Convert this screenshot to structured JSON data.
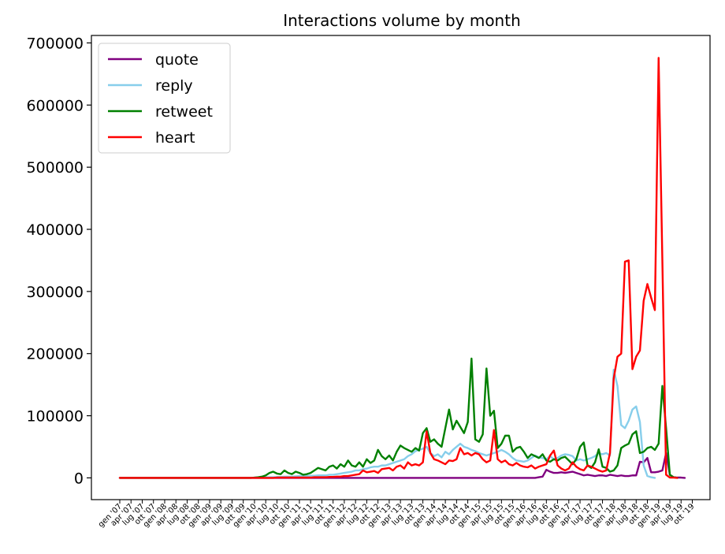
{
  "chart_data": {
    "type": "line",
    "title": "Interactions volume by month",
    "xlabel": "",
    "ylabel": "",
    "ylim": [
      -35000,
      712000
    ],
    "yticks": [
      0,
      100000,
      200000,
      300000,
      400000,
      500000,
      600000,
      700000
    ],
    "ytick_labels": [
      "0",
      "100000",
      "200000",
      "300000",
      "400000",
      "500000",
      "600000",
      "700000"
    ],
    "x_start": "2007-01",
    "x_end": "2019-12",
    "xtick_labels": [
      "gen '07",
      "apr '07",
      "lug '07",
      "ott '07",
      "gen '08",
      "apr '08",
      "lug '08",
      "ott '08",
      "gen '09",
      "apr '09",
      "lug '09",
      "ott '09",
      "gen '10",
      "apr '10",
      "lug '10",
      "ott '10",
      "gen '11",
      "apr '11",
      "lug '11",
      "ott '11",
      "gen '12",
      "apr '12",
      "lug '12",
      "ott '12",
      "gen '13",
      "apr '13",
      "lug '13",
      "ott '13",
      "gen '14",
      "apr '14",
      "lug '14",
      "ott '14",
      "gen '15",
      "apr '15",
      "lug '15",
      "ott '15",
      "gen '16",
      "apr '16",
      "lug '16",
      "ott '16",
      "gen '17",
      "apr '17",
      "lug '17",
      "ott '17",
      "gen '18",
      "apr '18",
      "lug '18",
      "ott '18",
      "gen '19",
      "apr '19",
      "lug '19",
      "ott '19"
    ],
    "legend_position": "top-left",
    "grid": false,
    "series": [
      {
        "name": "quote",
        "color": "#800080",
        "values": [
          0,
          0,
          0,
          0,
          0,
          0,
          0,
          0,
          0,
          0,
          0,
          0,
          0,
          0,
          0,
          0,
          0,
          0,
          0,
          0,
          0,
          0,
          0,
          0,
          0,
          0,
          0,
          0,
          0,
          0,
          0,
          0,
          0,
          0,
          0,
          0,
          0,
          0,
          0,
          0,
          0,
          0,
          0,
          0,
          0,
          0,
          0,
          0,
          0,
          0,
          0,
          0,
          0,
          0,
          0,
          0,
          0,
          0,
          0,
          0,
          0,
          0,
          0,
          0,
          0,
          0,
          0,
          0,
          0,
          0,
          0,
          0,
          0,
          0,
          0,
          0,
          0,
          0,
          0,
          0,
          0,
          0,
          0,
          0,
          0,
          0,
          0,
          0,
          0,
          0,
          0,
          0,
          0,
          0,
          0,
          0,
          0,
          0,
          0,
          0,
          0,
          0,
          0,
          0,
          0,
          0,
          0,
          0,
          0,
          0,
          0,
          0,
          1000,
          2000,
          13000,
          10000,
          8000,
          8000,
          9000,
          8000,
          9000,
          10000,
          8000,
          6000,
          4000,
          5000,
          4000,
          3000,
          4000,
          4000,
          3000,
          5000,
          4000,
          3000,
          4000,
          3000,
          3000,
          4000,
          4000,
          26000,
          25000,
          32000,
          9000,
          9000,
          10000,
          12000,
          40000,
          5000,
          1000,
          500,
          500,
          0
        ]
      },
      {
        "name": "reply",
        "color": "#87CEEB",
        "values": [
          0,
          0,
          0,
          0,
          0,
          0,
          0,
          0,
          0,
          0,
          0,
          0,
          0,
          0,
          0,
          0,
          0,
          0,
          0,
          0,
          0,
          0,
          0,
          0,
          0,
          0,
          0,
          0,
          0,
          0,
          0,
          0,
          0,
          0,
          0,
          0,
          500,
          500,
          500,
          1000,
          1000,
          1000,
          1500,
          1500,
          2000,
          2000,
          2000,
          2500,
          3000,
          3000,
          3000,
          3500,
          3500,
          4000,
          4000,
          4000,
          5000,
          5000,
          6000,
          7000,
          8000,
          9000,
          10000,
          12000,
          12000,
          14000,
          15000,
          17000,
          18000,
          18000,
          20000,
          20000,
          22000,
          24000,
          26000,
          28000,
          30000,
          35000,
          38000,
          43000,
          45000,
          47000,
          50000,
          40000,
          35000,
          38000,
          33000,
          42000,
          38000,
          45000,
          50000,
          55000,
          50000,
          48000,
          45000,
          43000,
          40000,
          38000,
          36000,
          38000,
          40000,
          42000,
          45000,
          42000,
          38000,
          32000,
          28000,
          27000,
          26000,
          28000,
          32000,
          36000,
          33000,
          32000,
          30000,
          35000,
          30000,
          32000,
          36000,
          38000,
          37000,
          35000,
          28000,
          30000,
          28000,
          30000,
          32000,
          35000,
          40000,
          38000,
          40000,
          36000,
          174000,
          148000,
          85000,
          80000,
          92000,
          110000,
          115000,
          90000,
          20000,
          3000,
          1000,
          0
        ]
      },
      {
        "name": "retweet",
        "color": "#008000",
        "values": [
          0,
          0,
          0,
          0,
          0,
          0,
          0,
          0,
          0,
          0,
          0,
          0,
          0,
          0,
          0,
          0,
          0,
          0,
          0,
          0,
          0,
          0,
          0,
          0,
          0,
          0,
          0,
          0,
          0,
          0,
          0,
          0,
          0,
          0,
          0,
          0,
          500,
          1000,
          2000,
          4000,
          8000,
          10000,
          7000,
          6000,
          12000,
          8000,
          6000,
          10000,
          8000,
          5000,
          6000,
          8000,
          12000,
          16000,
          14000,
          12000,
          18000,
          20000,
          15000,
          22000,
          18000,
          28000,
          20000,
          18000,
          25000,
          18000,
          30000,
          24000,
          28000,
          45000,
          35000,
          30000,
          36000,
          28000,
          42000,
          52000,
          48000,
          45000,
          42000,
          48000,
          44000,
          72000,
          80000,
          58000,
          62000,
          55000,
          50000,
          80000,
          110000,
          78000,
          92000,
          82000,
          72000,
          90000,
          192000,
          62000,
          58000,
          70000,
          176000,
          100000,
          108000,
          48000,
          55000,
          68000,
          68000,
          42000,
          48000,
          50000,
          42000,
          32000,
          38000,
          35000,
          32000,
          38000,
          28000,
          26000,
          30000,
          28000,
          32000,
          34000,
          28000,
          22000,
          30000,
          50000,
          57000,
          20000,
          16000,
          25000,
          46000,
          18000,
          16000,
          10000,
          12000,
          20000,
          48000,
          52000,
          55000,
          70000,
          75000,
          40000,
          42000,
          48000,
          50000,
          45000,
          55000,
          148000,
          80000,
          5000,
          1000,
          0
        ]
      },
      {
        "name": "heart",
        "color": "#FF0000",
        "values": [
          0,
          0,
          0,
          0,
          0,
          0,
          0,
          0,
          0,
          0,
          0,
          0,
          0,
          0,
          0,
          0,
          0,
          0,
          0,
          0,
          0,
          0,
          0,
          0,
          0,
          0,
          0,
          0,
          0,
          0,
          0,
          0,
          0,
          0,
          0,
          0,
          0,
          0,
          0,
          0,
          0,
          0,
          500,
          500,
          500,
          500,
          500,
          500,
          500,
          500,
          500,
          500,
          1000,
          1000,
          1000,
          1000,
          1500,
          1500,
          2000,
          2000,
          3000,
          3000,
          4000,
          5000,
          6000,
          12000,
          9000,
          10000,
          11000,
          8000,
          14000,
          15000,
          16000,
          12000,
          18000,
          20000,
          15000,
          25000,
          20000,
          22000,
          20000,
          25000,
          75000,
          40000,
          30000,
          28000,
          25000,
          22000,
          28000,
          27000,
          30000,
          48000,
          38000,
          40000,
          36000,
          40000,
          38000,
          30000,
          25000,
          28000,
          77000,
          30000,
          25000,
          28000,
          22000,
          20000,
          24000,
          20000,
          18000,
          17000,
          20000,
          15000,
          18000,
          20000,
          22000,
          36000,
          44000,
          20000,
          15000,
          12000,
          15000,
          25000,
          18000,
          14000,
          12000,
          20000,
          18000,
          15000,
          12000,
          10000,
          12000,
          40000,
          160000,
          195000,
          200000,
          348000,
          350000,
          175000,
          195000,
          205000,
          285000,
          312000,
          290000,
          270000,
          676000,
          350000,
          5000,
          500,
          500,
          0
        ]
      }
    ]
  }
}
